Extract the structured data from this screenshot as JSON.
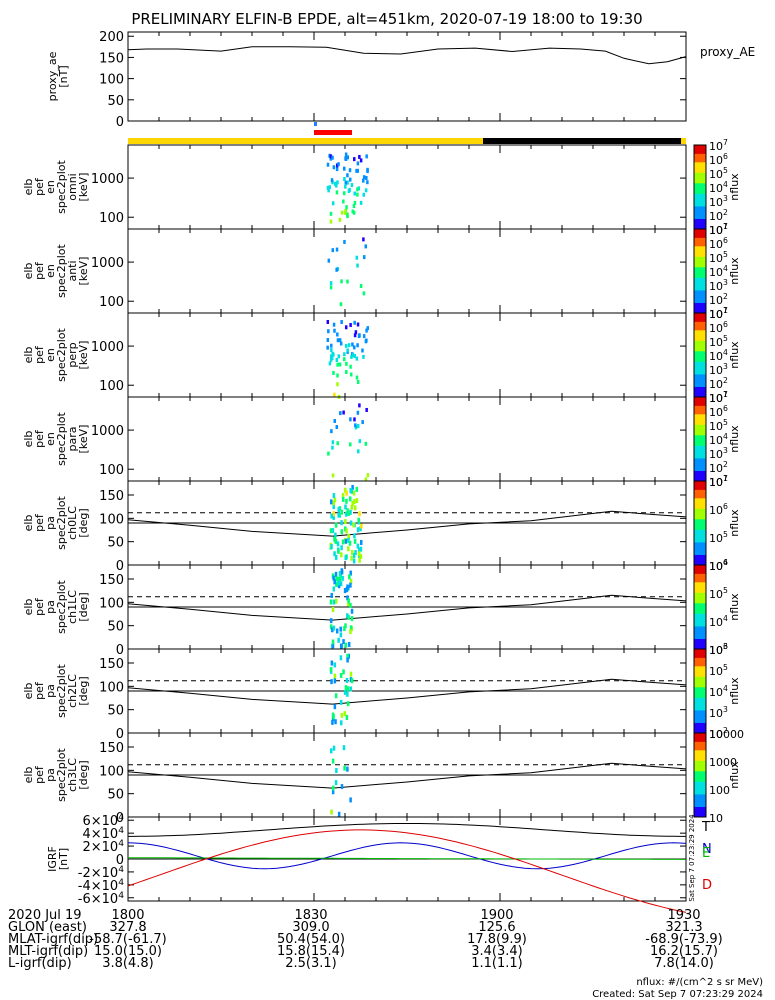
{
  "title": "PRELIMINARY ELFIN-B EPDE, alt=451km, 2020-07-19 18:00 to 19:30",
  "colors": {
    "sci_zone": "#ffd700",
    "eclipse": "#000000",
    "red_bar": "#ff0000",
    "marker": "#2080ff",
    "T": "#000000",
    "N": "#0000cc",
    "E": "#00bb00",
    "D": "#dd0000"
  },
  "chart_data": [
    {
      "id": "ae",
      "type": "line",
      "ylabel": "proxy_ae\n[nT]",
      "legend": "proxy_AE",
      "yticks": [
        "0",
        "50",
        "100",
        "150",
        "200"
      ],
      "ylim": [
        0,
        210
      ],
      "x_minutes": [
        0,
        3,
        8,
        15,
        20,
        26,
        32,
        38,
        44,
        50,
        56,
        62,
        68,
        73,
        77,
        80,
        84,
        87,
        90
      ],
      "values": [
        168,
        170,
        170,
        165,
        175,
        175,
        174,
        160,
        158,
        170,
        172,
        164,
        172,
        170,
        165,
        148,
        135,
        140,
        152
      ]
    },
    {
      "id": "en_omni",
      "type": "heatmap",
      "ylabel": "elb\npef\nen\nspec2plot\nomni\n[keV]",
      "yticks": [
        "100",
        "1000"
      ],
      "cbar_ticks": [
        "10^1",
        "10^2",
        "10^3",
        "10^4",
        "10^5",
        "10^6",
        "10^7"
      ],
      "cbar_label": "nflux"
    },
    {
      "id": "en_anti",
      "type": "heatmap",
      "ylabel": "elb\npef\nen\nspec2plot\nanti\n[keV]",
      "yticks": [
        "100",
        "1000"
      ],
      "cbar_ticks": [
        "10^1",
        "10^2",
        "10^3",
        "10^4",
        "10^5",
        "10^6",
        "10^7"
      ],
      "cbar_label": "nflux"
    },
    {
      "id": "en_perp",
      "type": "heatmap",
      "ylabel": "elb\npef\nen\nspec2plot\nperp\n[keV]",
      "yticks": [
        "100",
        "1000"
      ],
      "cbar_ticks": [
        "10^1",
        "10^2",
        "10^3",
        "10^4",
        "10^5",
        "10^6",
        "10^7"
      ],
      "cbar_label": "nflux"
    },
    {
      "id": "en_para",
      "type": "heatmap",
      "ylabel": "elb\npef\nen\nspec2plot\npara\n[keV]",
      "yticks": [
        "100",
        "1000"
      ],
      "cbar_ticks": [
        "10^1",
        "10^2",
        "10^3",
        "10^4",
        "10^5",
        "10^6",
        "10^7"
      ],
      "cbar_label": "nflux"
    },
    {
      "id": "ch0",
      "type": "heatmap",
      "ylabel": "elb\npef\npa\nspec2plot\nch0LC\n[deg]",
      "yticks": [
        "0",
        "50",
        "100",
        "150"
      ],
      "cbar_ticks": [
        "10^4",
        "10^5",
        "10^6",
        "10^7"
      ],
      "cbar_label": "nflux"
    },
    {
      "id": "ch1",
      "type": "heatmap",
      "ylabel": "elb\npef\npa\nspec2plot\nch1LC\n[deg]",
      "yticks": [
        "0",
        "50",
        "100",
        "150"
      ],
      "cbar_ticks": [
        "10^3",
        "10^4",
        "10^5",
        "10^6"
      ],
      "cbar_label": "nflux"
    },
    {
      "id": "ch2",
      "type": "heatmap",
      "ylabel": "elb\npef\npa\nspec2plot\nch2LC\n[deg]",
      "yticks": [
        "0",
        "50",
        "100",
        "150"
      ],
      "cbar_ticks": [
        "10^2",
        "10^3",
        "10^4",
        "10^5",
        "10^6"
      ],
      "cbar_label": "nflux"
    },
    {
      "id": "ch3",
      "type": "heatmap",
      "ylabel": "elb\npef\npa\nspec2plot\nch3LC\n[deg]",
      "yticks": [
        "0",
        "50",
        "100",
        "150"
      ],
      "cbar_ticks": [
        "10",
        "100",
        "1000",
        "10000"
      ],
      "cbar_label": "nflux"
    },
    {
      "id": "igrf",
      "type": "line",
      "ylabel": "IGRF\n[nT]",
      "yticks": [
        "-6×10^4",
        "-4×10^4",
        "-2×10^4",
        "0",
        "2×10^4",
        "4×10^4",
        "6×10^4"
      ],
      "ylim": [
        -65000,
        65000
      ],
      "legend": [
        "T",
        "N",
        "E",
        "D"
      ]
    }
  ],
  "xaxis": {
    "tick_labels": [
      "1800",
      "1830",
      "1900",
      "1930"
    ],
    "rows": [
      {
        "label": "2020 Jul 19",
        "values": [
          "1800",
          "1830",
          "1900",
          "1930"
        ]
      },
      {
        "label": "GLON (east)",
        "values": [
          "327.8",
          "309.0",
          "125.6",
          "321.3"
        ]
      },
      {
        "label": "MLAT-igrf(dip)",
        "values": [
          "-58.7(-61.7)",
          "50.4(54.0)",
          "17.8(9.9)",
          "-68.9(-73.9)"
        ]
      },
      {
        "label": "MLT-igrf(dip)",
        "values": [
          "15.0(15.0)",
          "15.8(15.4)",
          "3.4(3.4)",
          "16.2(15.7)"
        ]
      },
      {
        "label": "L-igrf(dip)",
        "values": [
          "3.8(4.8)",
          "2.5(3.1)",
          "1.1(1.1)",
          "7.8(14.0)"
        ]
      }
    ]
  },
  "footer": {
    "units": "nflux: #/(cm^2 s sr MeV)",
    "created": "Created: Sat Sep  7 07:23:29 2024",
    "side_stamp": "Sat Sep  7 07:23:29 2024"
  }
}
